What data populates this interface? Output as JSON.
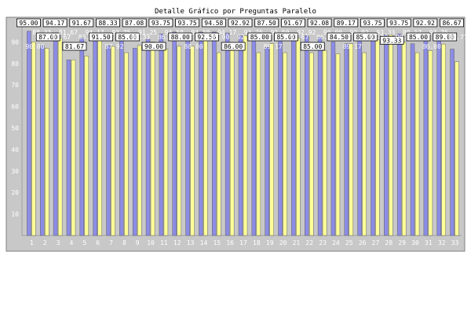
{
  "chart_data": {
    "type": "bar",
    "title": "Detalle Gráfico por Preguntas Paralelo",
    "xlabel": "",
    "ylabel": "",
    "ylim": [
      0,
      100
    ],
    "yticks": [
      10,
      20,
      30,
      40,
      50,
      60,
      70,
      80,
      90
    ],
    "grid": false,
    "legend": "none",
    "categories": [
      "1",
      "2",
      "3",
      "4",
      "5",
      "6",
      "7",
      "8",
      "9",
      "10",
      "11",
      "12",
      "13",
      "14",
      "15",
      "16",
      "17",
      "18",
      "19",
      "20",
      "21",
      "22",
      "23",
      "24",
      "25",
      "26",
      "27",
      "28",
      "29",
      "30",
      "31",
      "32",
      "33"
    ],
    "series": [
      {
        "color": "#8c8ce6",
        "values": [
          95.0,
          88.33,
          94.17,
          81.67,
          91.67,
          94.17,
          88.33,
          93.75,
          87.08,
          91.25,
          93.75,
          94.58,
          93.75,
          94.58,
          94.58,
          94.17,
          92.92,
          93.75,
          87.5,
          92.5,
          91.67,
          92.92,
          92.08,
          90.0,
          89.17,
          92.92,
          93.75,
          93.33,
          93.75,
          89.17,
          92.92,
          93.75,
          86.67
        ]
      },
      {
        "color": "#ffff99",
        "values": [
          90.0,
          87.0,
          91.67,
          81.67,
          83.49,
          91.5,
          87.92,
          85.0,
          88.33,
          90.0,
          86.78,
          88.0,
          88.0,
          92.5,
          85.0,
          86.0,
          92.92,
          85.0,
          89.17,
          85.0,
          91.67,
          85.0,
          86.0,
          84.5,
          89.17,
          85.0,
          91.0,
          93.33,
          90.0,
          85.0,
          86.0,
          89.0,
          80.77
        ]
      }
    ]
  }
}
